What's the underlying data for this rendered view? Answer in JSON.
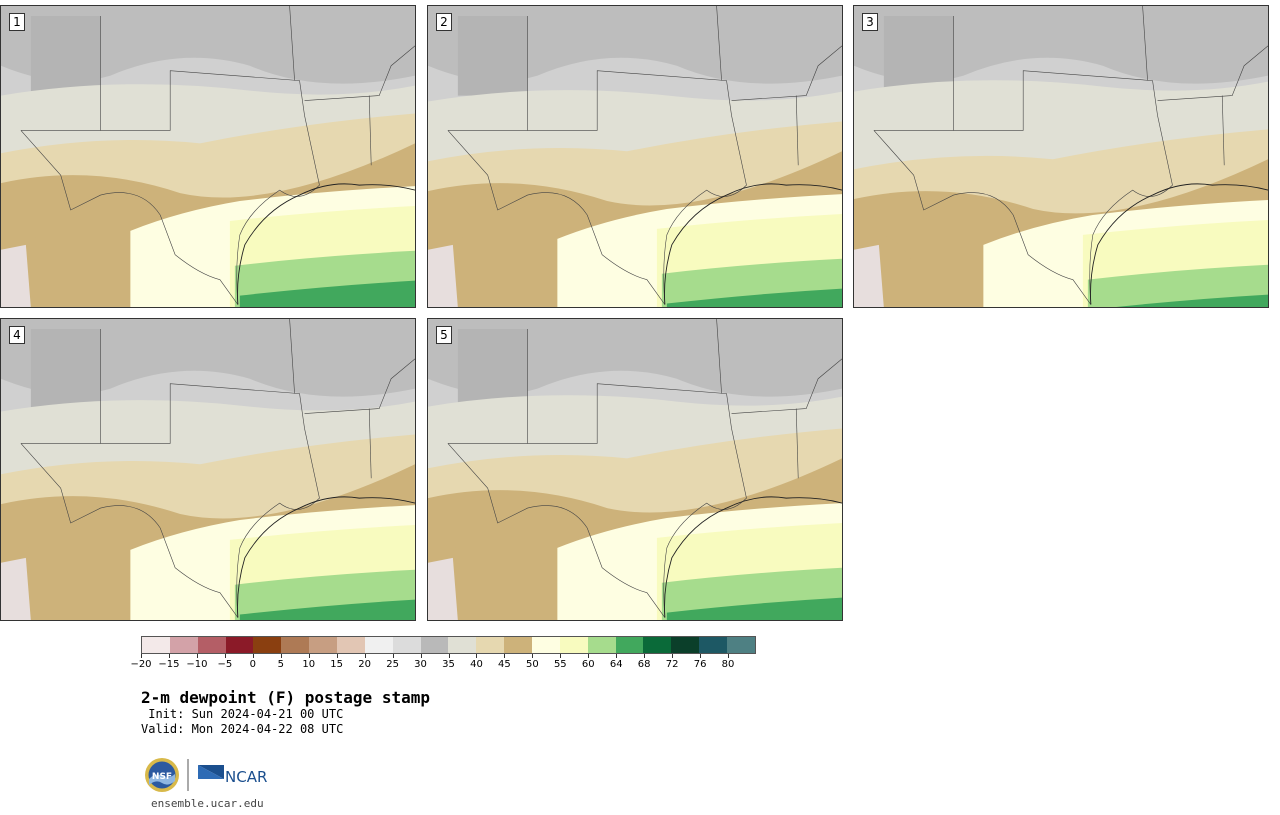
{
  "panels": [
    {
      "label": "1"
    },
    {
      "label": "2"
    },
    {
      "label": "3"
    },
    {
      "label": "4"
    },
    {
      "label": "5"
    }
  ],
  "colorbar": {
    "colors": [
      "#f3e9e9",
      "#d3a2a8",
      "#b45e66",
      "#8b1a28",
      "#8a3f10",
      "#ae7a55",
      "#c79e82",
      "#e2c6b4",
      "#f0f0f0",
      "#dcdcdc",
      "#b9b9b9",
      "#e0e0d5",
      "#e6d8b0",
      "#cdb27a",
      "#fefee2",
      "#f8fbbf",
      "#a6dc8d",
      "#41a85d",
      "#0a6a39",
      "#0b3f2a",
      "#1d5864",
      "#4e8083"
    ],
    "tick_labels": [
      "−20",
      "−15",
      "−10",
      "−5",
      "0",
      "5",
      "10",
      "15",
      "20",
      "25",
      "30",
      "35",
      "40",
      "45",
      "50",
      "55",
      "60",
      "64",
      "68",
      "72",
      "76",
      "80"
    ]
  },
  "title": "2-m dewpoint (F) postage stamp",
  "init_text": " Init: Sun 2024-04-21 00 UTC",
  "valid_text": "Valid: Mon 2024-04-22 08 UTC",
  "logo": {
    "nsf": "NSF",
    "ncar": "NCAR"
  },
  "website": "ensemble.ucar.edu"
}
